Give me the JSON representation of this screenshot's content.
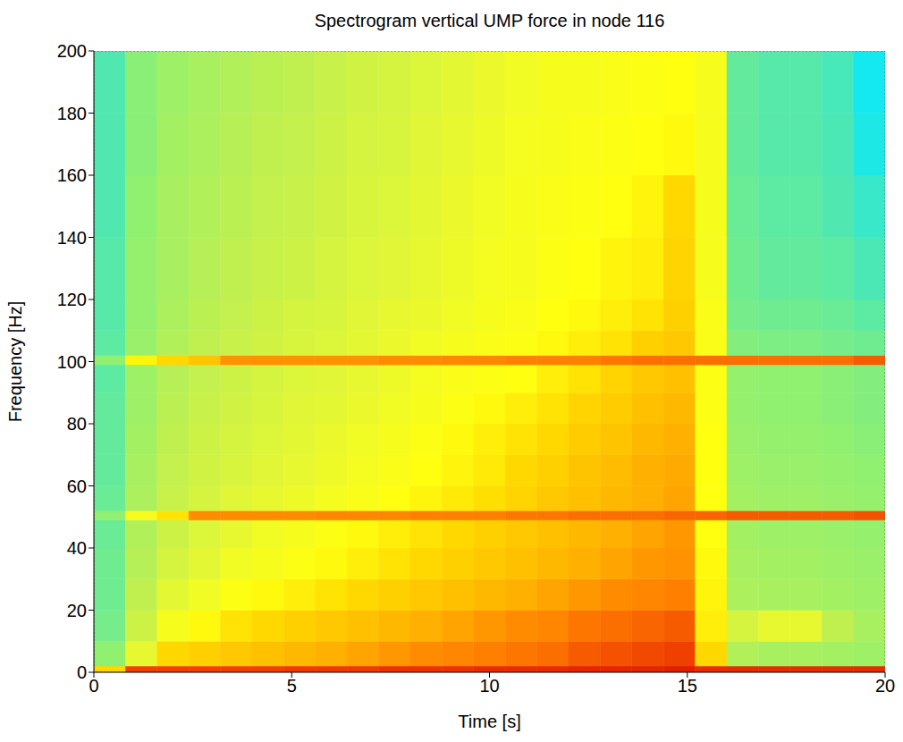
{
  "chart_data": {
    "type": "heatmap",
    "title": "Spectrogram vertical UMP force in node 116",
    "x_label": "Time [s]",
    "y_label": "Frequency [Hz]",
    "xlim": [
      0,
      20
    ],
    "xticks": [
      0,
      5,
      10,
      15,
      20
    ],
    "ylim": [
      0,
      200
    ],
    "yticks": [
      0,
      20,
      40,
      60,
      80,
      100,
      120,
      140,
      160,
      180,
      200
    ],
    "x_edges": [
      0,
      0.8,
      1.6,
      2.4,
      3.2,
      4,
      4.8,
      5.6,
      6.4,
      7.2,
      8,
      8.8,
      9.6,
      10.4,
      11.2,
      12,
      12.8,
      13.6,
      14.4,
      15.2,
      16,
      16.8,
      17.6,
      18.4,
      19.2,
      20
    ],
    "y_edges": [
      0,
      2,
      10,
      20,
      30,
      40,
      49,
      52,
      60,
      70,
      80,
      90,
      99,
      102,
      110,
      120,
      140,
      160,
      180,
      200
    ],
    "color_range": [
      0,
      10
    ],
    "cells": [
      [
        7,
        9.5,
        9.5,
        9.5,
        9.5,
        9.5,
        9.6,
        9.6,
        9.6,
        9.7,
        9.7,
        9.7,
        9.8,
        9.8,
        9.8,
        9.9,
        9.9,
        9.9,
        10,
        9.8,
        9.8,
        9.8,
        9.8,
        9.8,
        9.8
      ],
      [
        3.5,
        5.5,
        7,
        7.2,
        7.4,
        7.6,
        7.8,
        8,
        8.2,
        8.4,
        8.6,
        8.7,
        8.8,
        8.9,
        9,
        9.2,
        9.3,
        9.4,
        9.5,
        7,
        4.2,
        4,
        4,
        3.9,
        3.8
      ],
      [
        3.1,
        4.8,
        6,
        6.4,
        6.8,
        7,
        7.2,
        7.4,
        7.6,
        7.8,
        8,
        8.2,
        8.4,
        8.6,
        8.7,
        8.9,
        9,
        9.1,
        9.2,
        6.6,
        5,
        5.5,
        5.5,
        4.5,
        4
      ],
      [
        3,
        4.5,
        5.4,
        5.8,
        6.2,
        6.4,
        6.6,
        6.8,
        7,
        7.2,
        7.4,
        7.6,
        7.8,
        8,
        8.2,
        8.4,
        8.6,
        8.7,
        8.8,
        6.5,
        4.1,
        4,
        4,
        3.9,
        3.8
      ],
      [
        3,
        4.3,
        5,
        5.4,
        5.8,
        6,
        6.2,
        6.4,
        6.6,
        6.8,
        7,
        7.2,
        7.4,
        7.6,
        7.8,
        8,
        8.2,
        8.4,
        8.5,
        6.4,
        4,
        3.9,
        3.9,
        3.8,
        3.7
      ],
      [
        2.9,
        4.2,
        4.8,
        5.2,
        5.5,
        5.8,
        6,
        6.2,
        6.4,
        6.6,
        6.8,
        7,
        7.2,
        7.4,
        7.6,
        7.8,
        8,
        8.2,
        8.4,
        6.3,
        3.9,
        3.8,
        3.8,
        3.7,
        3.6
      ],
      [
        3.5,
        6,
        6.8,
        8.6,
        8.6,
        8.6,
        8.6,
        8.7,
        8.7,
        8.7,
        8.8,
        8.8,
        8.8,
        8.9,
        8.9,
        9,
        9,
        9,
        9.1,
        9.1,
        9.2,
        9.2,
        9.2,
        9.2,
        9.3
      ],
      [
        2.9,
        4.1,
        4.7,
        5,
        5.3,
        5.5,
        5.7,
        5.9,
        6.1,
        6.3,
        6.5,
        6.7,
        6.9,
        7.1,
        7.4,
        7.6,
        7.8,
        8,
        8.2,
        6.3,
        3.9,
        3.8,
        3.8,
        3.7,
        3.6
      ],
      [
        2.8,
        4,
        4.6,
        4.9,
        5.1,
        5.3,
        5.5,
        5.7,
        5.9,
        6.1,
        6.3,
        6.5,
        6.7,
        7,
        7.2,
        7.5,
        7.7,
        8,
        8.1,
        6.3,
        3.8,
        3.7,
        3.7,
        3.6,
        3.5
      ],
      [
        2.8,
        3.9,
        4.5,
        4.8,
        5,
        5.2,
        5.4,
        5.6,
        5.8,
        6,
        6.2,
        6.4,
        6.6,
        6.8,
        7,
        7.3,
        7.5,
        7.8,
        8,
        6.3,
        3.7,
        3.6,
        3.6,
        3.5,
        3.4
      ],
      [
        2.8,
        3.8,
        4.4,
        4.7,
        4.9,
        5.1,
        5.3,
        5.4,
        5.6,
        5.8,
        6,
        6.2,
        6.4,
        6.6,
        6.8,
        7.1,
        7.3,
        7.6,
        7.8,
        6.2,
        3.6,
        3.5,
        3.5,
        3.4,
        3.3
      ],
      [
        2.7,
        3.8,
        4.3,
        4.6,
        4.8,
        5,
        5.2,
        5.3,
        5.5,
        5.7,
        5.9,
        6.1,
        6.2,
        6.3,
        6.6,
        6.8,
        7.1,
        7.4,
        7.6,
        6.2,
        3.6,
        3.5,
        3.5,
        3.4,
        3.3
      ],
      [
        3.5,
        6.5,
        7,
        7.5,
        8.5,
        8.5,
        8.5,
        8.5,
        8.5,
        8.6,
        8.6,
        8.7,
        8.7,
        8.8,
        8.8,
        8.8,
        8.9,
        9,
        9,
        9,
        9,
        9,
        9,
        9,
        9.2
      ],
      [
        2.7,
        3.7,
        4.2,
        4.5,
        4.7,
        4.9,
        5.1,
        5.2,
        5.4,
        5.6,
        5.8,
        6,
        6.1,
        6.2,
        6.4,
        6.6,
        6.8,
        7.2,
        7.4,
        6.1,
        3.3,
        3.2,
        3.2,
        3.1,
        3
      ],
      [
        2.6,
        3.6,
        4.1,
        4.4,
        4.6,
        4.8,
        5,
        5.1,
        5.3,
        5.5,
        5.6,
        5.8,
        6,
        6.1,
        6.3,
        6.4,
        6.6,
        6.8,
        7.2,
        6.1,
        3.1,
        3,
        3,
        2.9,
        2.7
      ],
      [
        2.6,
        3.6,
        4,
        4.3,
        4.5,
        4.7,
        4.8,
        5,
        5.2,
        5.3,
        5.5,
        5.7,
        5.9,
        6,
        6.2,
        6.3,
        6.5,
        6.6,
        7.1,
        6,
        3,
        2.8,
        2.8,
        2.7,
        2.4
      ],
      [
        2.5,
        3.5,
        4,
        4.2,
        4.4,
        4.6,
        4.7,
        4.9,
        5.1,
        5.2,
        5.4,
        5.6,
        5.8,
        6,
        6.1,
        6.2,
        6.3,
        6.5,
        7,
        6,
        2.9,
        2.7,
        2.7,
        2.5,
        2
      ],
      [
        2.5,
        3.4,
        3.9,
        4.1,
        4.3,
        4.5,
        4.6,
        4.8,
        5,
        5.1,
        5.3,
        5.5,
        5.7,
        5.9,
        6,
        6.1,
        6.2,
        6.3,
        6.4,
        6,
        2.8,
        2.6,
        2.6,
        2.4,
        1.4
      ],
      [
        2.5,
        3.4,
        3.8,
        4,
        4.2,
        4.4,
        4.5,
        4.7,
        4.9,
        5,
        5.2,
        5.4,
        5.6,
        5.8,
        6,
        6,
        6.1,
        6.2,
        6.3,
        6,
        2.8,
        2.6,
        2.6,
        2.3,
        1.2
      ]
    ]
  }
}
